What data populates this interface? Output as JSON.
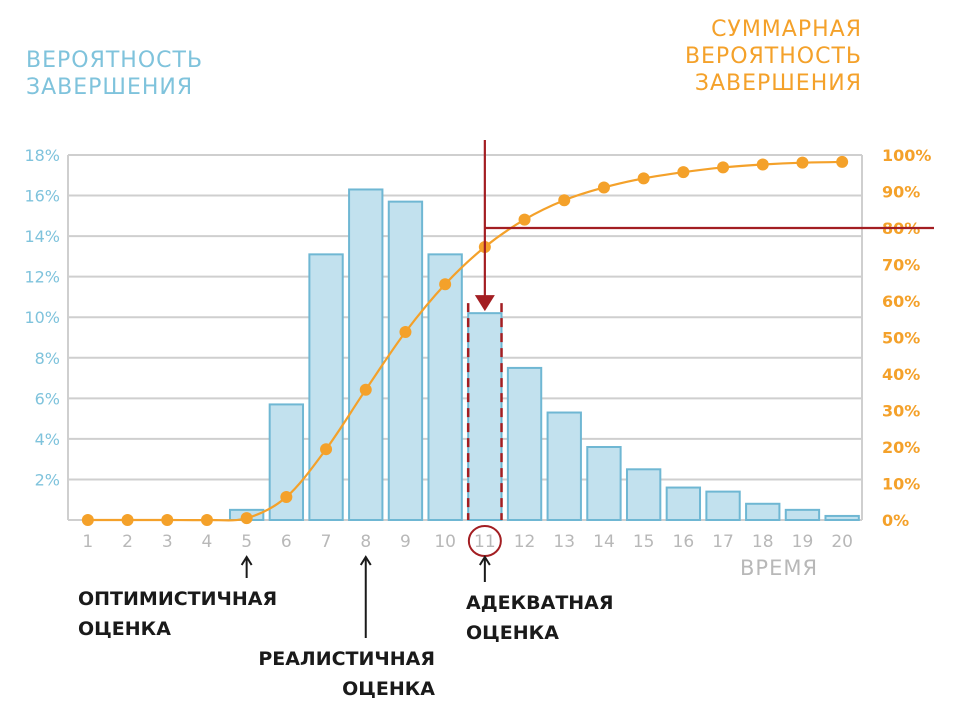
{
  "titles": {
    "left": "Вероятность\nзавершения",
    "right": "Суммарная\nвероятность\nзавершения"
  },
  "x_axis_name": "время",
  "annotations": {
    "optimistic": "Оптимистичная\nоценка",
    "realistic": "Реалистичная\nоценка",
    "adequate": "Адекватная\nоценка"
  },
  "colors": {
    "bar_fill": "#c2e1ee",
    "bar_stroke": "#6fb7d3",
    "left_axis_text": "#7fc3dc",
    "cumulative_line": "#f4a12a",
    "marker": "#a31e22",
    "grid": "#cfcfcf",
    "x_tick_text": "#b8b8b8",
    "annotation_text": "#1a1a1a"
  },
  "chart_data": {
    "type": "bar",
    "categories": [
      "1",
      "2",
      "3",
      "4",
      "5",
      "6",
      "7",
      "8",
      "9",
      "10",
      "11",
      "12",
      "13",
      "14",
      "15",
      "16",
      "17",
      "18",
      "19",
      "20"
    ],
    "series": [
      {
        "axis": "left",
        "type": "bar",
        "values": [
          0,
          0,
          0,
          0,
          0.5,
          5.7,
          13.1,
          16.3,
          15.7,
          13.1,
          10.2,
          7.5,
          5.3,
          3.6,
          2.5,
          1.6,
          1.4,
          0.8,
          0.5,
          0.2
        ]
      },
      {
        "axis": "right",
        "type": "line",
        "values": [
          0,
          0,
          0,
          0,
          0.5,
          6.3,
          19.4,
          35.7,
          51.5,
          64.6,
          74.8,
          82.3,
          87.6,
          91.1,
          93.6,
          95.3,
          96.6,
          97.4,
          97.9,
          98.1
        ]
      }
    ],
    "left_axis": {
      "ylim": [
        0,
        18
      ],
      "ticks": [
        "2%",
        "4%",
        "6%",
        "8%",
        "10%",
        "12%",
        "14%",
        "16%",
        "18%"
      ]
    },
    "right_axis": {
      "ylim": [
        0,
        100
      ],
      "ticks": [
        "0%",
        "10%",
        "20%",
        "30%",
        "40%",
        "50%",
        "60%",
        "70%",
        "80%",
        "90%",
        "100%"
      ]
    },
    "highlight": {
      "category": "11",
      "threshold": 80
    },
    "annotated_categories": {
      "optimistic": "5",
      "realistic": "8",
      "adequate": "11"
    },
    "grid": true
  }
}
